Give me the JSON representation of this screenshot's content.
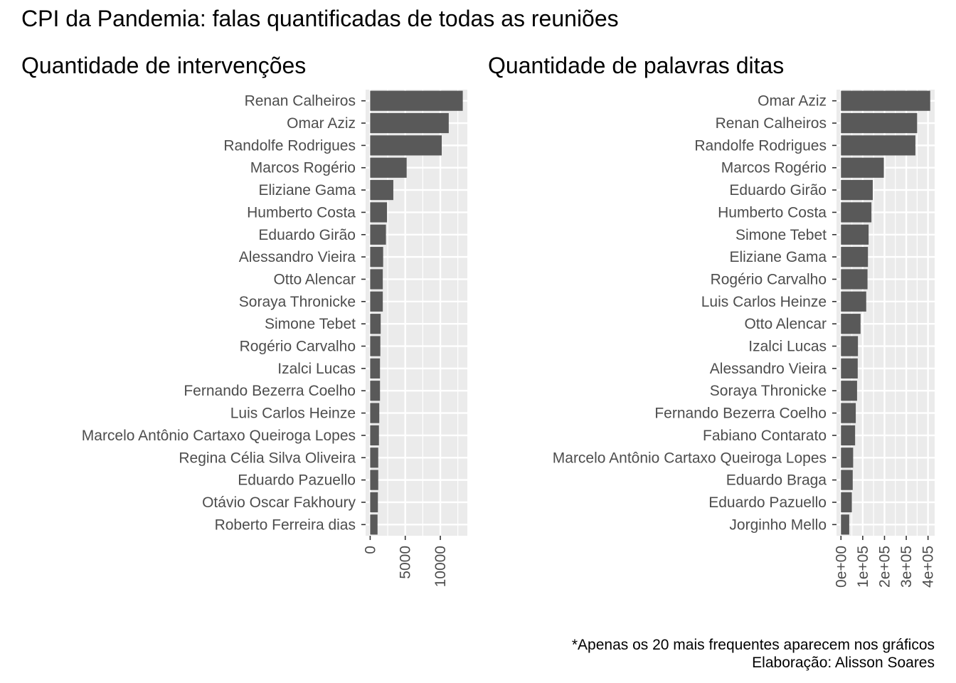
{
  "title": "CPI da Pandemia: falas quantificadas de todas as reuniões",
  "caption": {
    "line1": "*Apenas os 20 mais frequentes aparecem nos gráficos",
    "line2": "Elaboração: Alisson Soares"
  },
  "colors": {
    "bar": "#595959",
    "panel": "#ebebeb",
    "grid": "#ffffff",
    "axis_text": "#4d4d4d",
    "tick": "#333333"
  },
  "chart_data": [
    {
      "type": "bar",
      "orientation": "horizontal",
      "subtitle": "Quantidade de intervenções",
      "categories": [
        "Renan Calheiros",
        "Omar Aziz",
        "Randolfe Rodrigues",
        "Marcos Rogério",
        "Eliziane Gama",
        "Humberto Costa",
        "Eduardo Girão",
        "Alessandro Vieira",
        "Otto Alencar",
        "Soraya Thronicke",
        "Simone Tebet",
        "Rogério Carvalho",
        "Izalci Lucas",
        "Fernando Bezerra Coelho",
        "Luis Carlos Heinze",
        "Marcelo Antônio Cartaxo Queiroga Lopes",
        "Regina Célia Silva Oliveira",
        "Eduardo Pazuello",
        "Otávio Oscar Fakhoury",
        "Roberto Ferreira dias"
      ],
      "values": [
        13200,
        11200,
        10200,
        5200,
        3300,
        2400,
        2250,
        1850,
        1800,
        1800,
        1500,
        1450,
        1400,
        1400,
        1300,
        1250,
        1150,
        1150,
        1100,
        1050
      ],
      "xlim": [
        -650,
        13850
      ],
      "ticks": [
        0,
        5000,
        10000
      ],
      "tick_labels": [
        "0",
        "5000",
        "10000"
      ]
    },
    {
      "type": "bar",
      "orientation": "horizontal",
      "subtitle": "Quantidade de palavras ditas",
      "categories": [
        "Omar Aziz",
        "Renan Calheiros",
        "Randolfe Rodrigues",
        "Marcos Rogério",
        "Eduardo Girão",
        "Humberto Costa",
        "Simone Tebet",
        "Eliziane Gama",
        "Rogério Carvalho",
        "Luis Carlos Heinze",
        "Otto Alencar",
        "Izalci Lucas",
        "Alessandro Vieira",
        "Soraya Thronicke",
        "Fernando Bezerra Coelho",
        "Fabiano Contarato",
        "Marcelo Antônio Cartaxo Queiroga Lopes",
        "Eduardo Braga",
        "Eduardo Pazuello",
        "Jorginho Mello"
      ],
      "values": [
        410000,
        350000,
        342000,
        197000,
        146000,
        140000,
        127000,
        124000,
        122000,
        116000,
        90000,
        78000,
        77000,
        74000,
        68000,
        65000,
        56000,
        54000,
        50000,
        38000
      ],
      "xlim": [
        -20500,
        430500
      ],
      "ticks": [
        0,
        100000,
        200000,
        300000,
        400000
      ],
      "tick_labels": [
        "0e+00",
        "1e+05",
        "2e+05",
        "3e+05",
        "4e+05"
      ]
    }
  ]
}
